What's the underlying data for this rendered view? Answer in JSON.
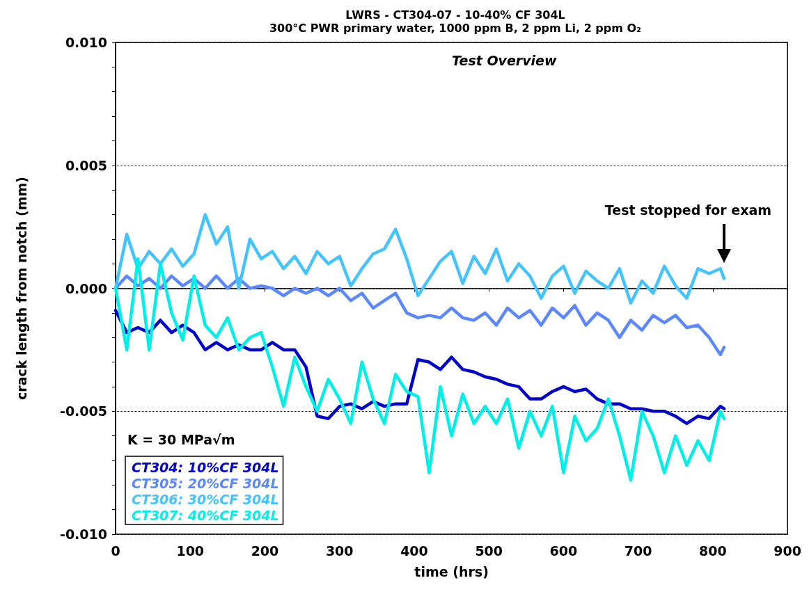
{
  "chart_data": {
    "type": "line",
    "title": "LWRS - CT304-07 - 10-40% CF 304L",
    "subtitle": "300°C PWR primary water, 1000 ppm B, 2 ppm Li, 2 ppm O₂",
    "xlabel": "time (hrs)",
    "ylabel": "crack length from notch (mm)",
    "annotations": [
      "Test Overview",
      "K = 30 MPa√m",
      "Test stopped for exam"
    ],
    "x": [
      0,
      15,
      30,
      45,
      60,
      75,
      90,
      105,
      120,
      135,
      150,
      165,
      180,
      195,
      210,
      225,
      240,
      255,
      270,
      285,
      300,
      315,
      330,
      345,
      360,
      375,
      390,
      405,
      420,
      435,
      450,
      465,
      480,
      495,
      510,
      525,
      540,
      555,
      570,
      585,
      600,
      615,
      630,
      645,
      660,
      675,
      690,
      705,
      720,
      735,
      750,
      765,
      780,
      795,
      810,
      815
    ],
    "series": [
      {
        "name": "CT304: 10%CF 304L",
        "color": "#0000cc",
        "values": [
          -0.0009,
          -0.0018,
          -0.0016,
          -0.0018,
          -0.0013,
          -0.0018,
          -0.0015,
          -0.0018,
          -0.0025,
          -0.0022,
          -0.0025,
          -0.0023,
          -0.0025,
          -0.0025,
          -0.0022,
          -0.0025,
          -0.0025,
          -0.0032,
          -0.0052,
          -0.0053,
          -0.0048,
          -0.0047,
          -0.0049,
          -0.0046,
          -0.0048,
          -0.0047,
          -0.0047,
          -0.0029,
          -0.003,
          -0.0033,
          -0.0028,
          -0.0033,
          -0.0034,
          -0.0036,
          -0.0037,
          -0.0039,
          -0.004,
          -0.0045,
          -0.0045,
          -0.0042,
          -0.004,
          -0.0042,
          -0.0041,
          -0.0045,
          -0.0047,
          -0.0047,
          -0.0049,
          -0.0049,
          -0.005,
          -0.005,
          -0.0052,
          -0.0055,
          -0.0052,
          -0.0053,
          -0.0048,
          -0.0049
        ]
      },
      {
        "name": "CT305: 20%CF 304L",
        "color": "#5b88ff",
        "values": [
          0,
          0.0005,
          0.0001,
          0.0004,
          0,
          0.0005,
          0.0001,
          0.0004,
          0,
          0.0005,
          0,
          0.0004,
          0,
          0.0001,
          0,
          -0.0003,
          0,
          -0.0002,
          0,
          -0.0003,
          0,
          -0.0005,
          -0.0002,
          -0.0008,
          -0.0005,
          -0.0002,
          -0.001,
          -0.0012,
          -0.0011,
          -0.0012,
          -0.0008,
          -0.0012,
          -0.0013,
          -0.001,
          -0.0015,
          -0.0008,
          -0.0012,
          -0.0009,
          -0.0015,
          -0.0008,
          -0.0012,
          -0.0007,
          -0.0015,
          -0.001,
          -0.0013,
          -0.002,
          -0.0013,
          -0.0017,
          -0.0011,
          -0.0014,
          -0.0011,
          -0.0016,
          -0.0015,
          -0.002,
          -0.0027,
          -0.0024
        ]
      },
      {
        "name": "CT306: 30%CF 304L",
        "color": "#44c4ff",
        "values": [
          0,
          0.0022,
          0.0008,
          0.0015,
          0.001,
          0.0016,
          0.0009,
          0.0014,
          0.003,
          0.0018,
          0.0025,
          0,
          0.002,
          0.0012,
          0.0015,
          0.0008,
          0.0013,
          0.0006,
          0.0015,
          0.001,
          0.0013,
          0.0001,
          0.0008,
          0.0014,
          0.0016,
          0.0024,
          0.0012,
          -0.0003,
          0.0004,
          0.0011,
          0.0015,
          0.0002,
          0.0013,
          0.0006,
          0.0016,
          0.0003,
          0.001,
          0.0005,
          -0.0004,
          0.0005,
          0.0009,
          -0.0002,
          0.0007,
          0.0003,
          0,
          0.0008,
          -0.0006,
          0.0003,
          -0.0002,
          0.0009,
          0.0001,
          -0.0004,
          0.0008,
          0.0006,
          0.0008,
          0.0004
        ]
      },
      {
        "name": "CT307: 40%CF 304L",
        "color": "#00f0e8",
        "values": [
          0,
          -0.0025,
          0.0012,
          -0.0025,
          0.001,
          -0.001,
          -0.0021,
          0.0005,
          -0.0015,
          -0.002,
          -0.0012,
          -0.0025,
          -0.002,
          -0.0018,
          -0.0032,
          -0.0048,
          -0.0028,
          -0.004,
          -0.005,
          -0.0037,
          -0.0045,
          -0.0055,
          -0.003,
          -0.0045,
          -0.0055,
          -0.0035,
          -0.0042,
          -0.0044,
          -0.0075,
          -0.004,
          -0.006,
          -0.0043,
          -0.0055,
          -0.0048,
          -0.0055,
          -0.0045,
          -0.0065,
          -0.005,
          -0.006,
          -0.0048,
          -0.0075,
          -0.0052,
          -0.0062,
          -0.0057,
          -0.0045,
          -0.006,
          -0.0078,
          -0.005,
          -0.006,
          -0.0075,
          -0.006,
          -0.0072,
          -0.0062,
          -0.007,
          -0.005,
          -0.0053
        ]
      }
    ],
    "xlim": [
      0,
      900
    ],
    "xticks": [
      0,
      100,
      200,
      300,
      400,
      500,
      600,
      700,
      800,
      900
    ],
    "ylim": [
      -0.01,
      0.01
    ],
    "yticks": [
      {
        "value": -0.01,
        "label": "-0.010"
      },
      {
        "value": -0.009,
        "label": null
      },
      {
        "value": -0.008,
        "label": null
      },
      {
        "value": -0.007,
        "label": null
      },
      {
        "value": -0.006,
        "label": null
      },
      {
        "value": -0.005,
        "label": "-0.005"
      },
      {
        "value": -0.004,
        "label": null
      },
      {
        "value": -0.003,
        "label": null
      },
      {
        "value": -0.002,
        "label": null
      },
      {
        "value": -0.001,
        "label": null
      },
      {
        "value": 0,
        "label": "0.000"
      },
      {
        "value": 0.001,
        "label": null
      },
      {
        "value": 0.002,
        "label": null
      },
      {
        "value": 0.003,
        "label": null
      },
      {
        "value": 0.004,
        "label": null
      },
      {
        "value": 0.005,
        "label": "0.005"
      },
      {
        "value": 0.006,
        "label": null
      },
      {
        "value": 0.007,
        "label": null
      },
      {
        "value": 0.008,
        "label": null
      },
      {
        "value": 0.009,
        "label": null
      },
      {
        "value": 0.01,
        "label": "0.010"
      }
    ],
    "grid": "y",
    "legend": "bottom left",
    "marker": "none",
    "line_style": "solid"
  }
}
